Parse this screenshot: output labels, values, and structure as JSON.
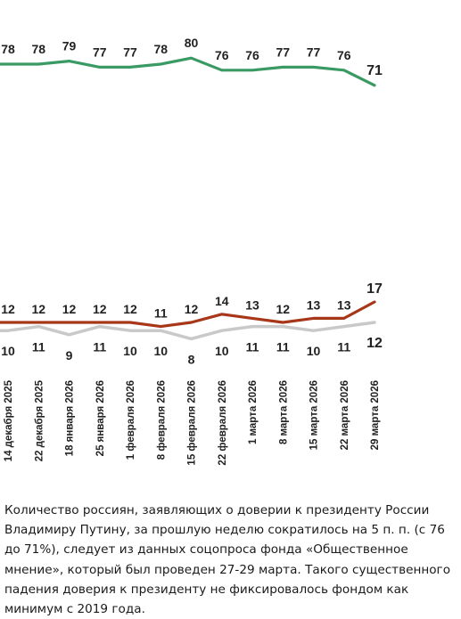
{
  "chart_data": {
    "type": "line",
    "categories": [
      "14 декабря 2025",
      "22 декабря 2025",
      "18 января 2026",
      "25 января 2026",
      "1 февраля 2026",
      "8 февраля 2026",
      "15 февраля 2026",
      "22 февраля 2026",
      "1 марта 2026",
      "8 марта 2026",
      "15 марта 2026",
      "22 марта 2026",
      "29 марта 2026"
    ],
    "series": [
      {
        "key": "trust",
        "color": "#3a9a64",
        "values": [
          78,
          78,
          79,
          77,
          77,
          78,
          80,
          76,
          76,
          77,
          77,
          76,
          71
        ]
      },
      {
        "key": "distrust",
        "color": "#a8371a",
        "values": [
          12,
          12,
          12,
          12,
          12,
          11,
          12,
          14,
          13,
          12,
          13,
          13,
          17
        ]
      },
      {
        "key": "undecided",
        "color": "#c9c9c9",
        "values": [
          10,
          11,
          9,
          11,
          10,
          10,
          8,
          10,
          11,
          11,
          10,
          11,
          12
        ]
      }
    ],
    "grid": false,
    "legend": "none"
  },
  "caption": "Количество россиян, заявляющих о доверии к президенту России Владимиру Путину, за прошлую неделю сократилось на 5 п. п. (с 76 до 71%), следует из данных соцопроса фонда «Общественное мнение», который был проведен 27-29 марта. Такого существенного падения доверия к президенту не фиксировалось фондом как минимум с 2019 года."
}
